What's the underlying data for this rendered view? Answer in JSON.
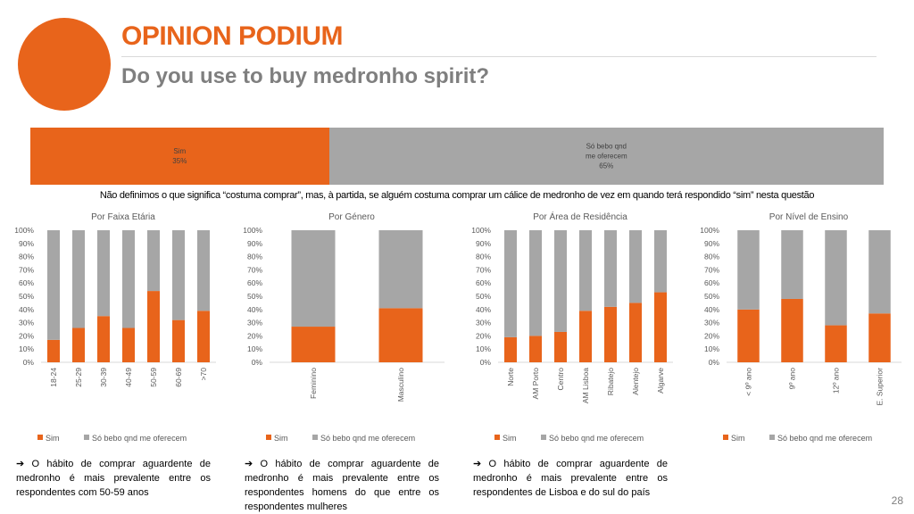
{
  "header": {
    "title": "OPINION PODIUM",
    "subtitle": "Do you use to buy medronho spirit?"
  },
  "colors": {
    "sim": "#E8641B",
    "nao": "#A6A6A6",
    "title": "#E8641B"
  },
  "overall": {
    "segments": [
      {
        "label": "Sim",
        "pct_label": "35%",
        "value": 35
      },
      {
        "label": "Só bebo qnd me oferecem",
        "label_lines": [
          "Só bebo qnd",
          "me oferecem"
        ],
        "pct_label": "65%",
        "value": 65
      }
    ]
  },
  "note": "Não definimos o que significa “costuma comprar”, mas, à partida, se alguém costuma comprar um cálice de medronho de vez em quando terá respondido “sim” nesta questão",
  "legend": {
    "sim": "Sim",
    "nao": "Só bebo qnd me oferecem"
  },
  "chart_data": [
    {
      "type": "bar",
      "stacked": true,
      "title": "Por Faixa Etária",
      "categories": [
        "18-24",
        "25-29",
        "30-39",
        "40-49",
        "50-59",
        "60-69",
        ">70"
      ],
      "series": [
        {
          "name": "Sim",
          "values": [
            17,
            26,
            35,
            26,
            54,
            32,
            39
          ]
        },
        {
          "name": "Só bebo qnd me oferecem",
          "values": [
            83,
            74,
            65,
            74,
            46,
            68,
            61
          ]
        }
      ],
      "ylim": [
        0,
        100
      ],
      "yticks": [
        "0%",
        "10%",
        "20%",
        "30%",
        "40%",
        "50%",
        "60%",
        "70%",
        "80%",
        "90%",
        "100%"
      ],
      "legend_position": "bottom"
    },
    {
      "type": "bar",
      "stacked": true,
      "title": "Por Género",
      "categories": [
        "Feminino",
        "Masculino"
      ],
      "series": [
        {
          "name": "Sim",
          "values": [
            27,
            41
          ]
        },
        {
          "name": "Só bebo qnd me oferecem",
          "values": [
            73,
            59
          ]
        }
      ],
      "ylim": [
        0,
        100
      ],
      "yticks": [
        "0%",
        "10%",
        "20%",
        "30%",
        "40%",
        "50%",
        "60%",
        "70%",
        "80%",
        "90%",
        "100%"
      ],
      "legend_position": "bottom"
    },
    {
      "type": "bar",
      "stacked": true,
      "title": "Por Área de Residência",
      "categories": [
        "Norte",
        "AM Porto",
        "Centro",
        "AM Lisboa",
        "Ribatejo",
        "Alentejo",
        "Algarve"
      ],
      "series": [
        {
          "name": "Sim",
          "values": [
            19,
            20,
            23,
            39,
            42,
            45,
            53
          ]
        },
        {
          "name": "Só bebo qnd me oferecem",
          "values": [
            81,
            80,
            77,
            61,
            58,
            55,
            47
          ]
        }
      ],
      "ylim": [
        0,
        100
      ],
      "yticks": [
        "0%",
        "10%",
        "20%",
        "30%",
        "40%",
        "50%",
        "60%",
        "70%",
        "80%",
        "90%",
        "100%"
      ],
      "legend_position": "bottom"
    },
    {
      "type": "bar",
      "stacked": true,
      "title": "Por Nível de Ensino",
      "categories": [
        "< 9º ano",
        "9º ano",
        "12º ano",
        "E. Superior"
      ],
      "series": [
        {
          "name": "Sim",
          "values": [
            40,
            48,
            28,
            37
          ]
        },
        {
          "name": "Só bebo qnd me oferecem",
          "values": [
            60,
            52,
            72,
            63
          ]
        }
      ],
      "ylim": [
        0,
        100
      ],
      "yticks": [
        "0%",
        "10%",
        "20%",
        "30%",
        "40%",
        "50%",
        "60%",
        "70%",
        "80%",
        "90%",
        "100%"
      ],
      "legend_position": "bottom"
    }
  ],
  "comments": [
    "➔ O hábito de comprar aguardente de medronho é mais prevalente entre os respondentes com 50-59 anos",
    "➔ O hábito de comprar aguardente de medronho é mais prevalente entre os respondentes homens do que entre os respondentes mulheres",
    "➔ O hábito de comprar aguardente de medronho é mais prevalente entre os respondentes de Lisboa e do sul do país"
  ],
  "page_number": "28"
}
